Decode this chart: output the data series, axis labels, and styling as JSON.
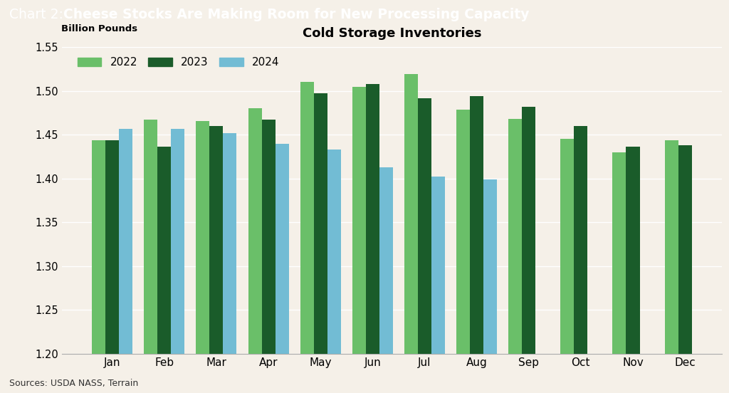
{
  "title_prefix": "Chart 2: ",
  "title_bold": "Cheese Stocks Are Making Room for New Processing Capacity",
  "subtitle": "Cold Storage Inventories",
  "ylabel": "Billion Pounds",
  "source": "Sources: USDA NASS, Terrain",
  "months": [
    "Jan",
    "Feb",
    "Mar",
    "Apr",
    "May",
    "Jun",
    "Jul",
    "Aug",
    "Sep",
    "Oct",
    "Nov",
    "Dec"
  ],
  "data_2022": [
    1.444,
    1.467,
    1.466,
    1.48,
    1.51,
    1.505,
    1.519,
    1.479,
    1.468,
    1.445,
    1.43,
    1.444
  ],
  "data_2023": [
    1.444,
    1.436,
    1.46,
    1.467,
    1.497,
    1.508,
    1.492,
    1.494,
    1.482,
    1.46,
    1.436,
    1.438
  ],
  "data_2024": [
    1.457,
    1.457,
    1.452,
    1.44,
    1.433,
    1.413,
    1.402,
    1.399,
    null,
    null,
    null,
    null
  ],
  "color_2022": "#6abf69",
  "color_2023": "#1a5c2a",
  "color_2024": "#72bcd4",
  "ylim": [
    1.2,
    1.55
  ],
  "yticks": [
    1.2,
    1.25,
    1.3,
    1.35,
    1.4,
    1.45,
    1.5,
    1.55
  ],
  "legend_labels": [
    "2022",
    "2023",
    "2024"
  ],
  "header_bg": "#2e5827",
  "bg_color": "#f5f0e8",
  "bar_width": 0.26,
  "subtitle_fontsize": 13
}
